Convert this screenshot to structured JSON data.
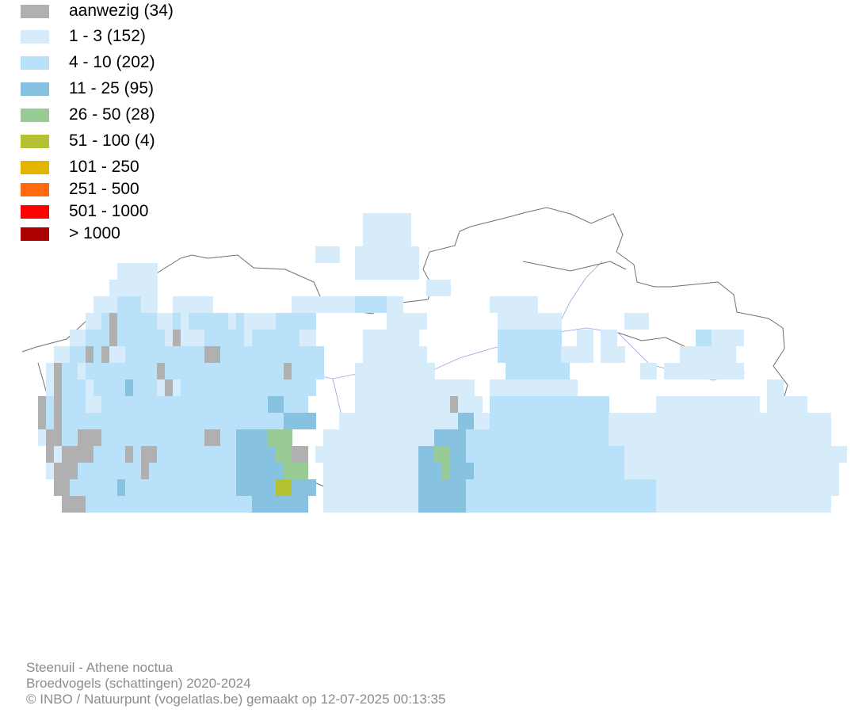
{
  "legend": [
    {
      "label": "aanwezig (34)",
      "color": "#b0b0b0"
    },
    {
      "label": "1 - 3 (152)",
      "color": "#d6ecfa"
    },
    {
      "label": "4 - 10 (202)",
      "color": "#b9e2fa"
    },
    {
      "label": "11 - 25 (95)",
      "color": "#88c2e1"
    },
    {
      "label": "26 - 50 (28)",
      "color": "#98cc94"
    },
    {
      "label": "51 - 100 (4)",
      "color": "#b4c231"
    },
    {
      "label": "101 - 250",
      "color": "#e3b400"
    },
    {
      "label": "251 - 500",
      "color": "#ff6a10"
    },
    {
      "label": "501 - 1000",
      "color": "#ff0000"
    },
    {
      "label": "> 1000",
      "color": "#aa0000"
    }
  ],
  "caption": {
    "species": "Steenuil - Athene noctua",
    "subtitle": "Broedvogels (schattingen) 2020-2024",
    "credit": "© INBO / Natuurpunt (vogelatlas.be) gemaakt op 12-07-2025 00:13:35"
  },
  "map": {
    "grid_cells_class_by_row": [
      "........................................................................................................",
      "...........................................11.11........................................................",
      "...........................................11.11........................................................",
      ".....................................11...1111111.......................................................",
      "............1111..........................11111.1.......................................................",
      "...........11111...................................11....................................................",
      ".........1112221...1111...........1111111.22221............1.1.1.........................................",
      "........112A222221121222221211112222..........1111..........1111111.........11...........................",
      "......11222A2222221A1112222212222221.......111111...........2222222...1..1...........2.111...............",
      "....1122A2A112222222222AA222222222222......111.111..........2222222.1.1..11........1.1.11...............",
      "...1A221222222222A222222222222222A222.....111111111..........2222222..........1..111.111.1...............",
      "...1A2221222232221A12222222222222222......1111111111.111...1111111111.........................1.........",
      "..A2A222112222222222222222222223322.......111111111111A11..22222222222222.......1.1.1.1111.1..11.1......",
      "..A2A2222222222222222222222222222333....1111111111111113311222222222222222111111111111111111111111111....",
      "..1AA22AAA2222222222222AA22333344.....111111111111113333222222222222222222111111111111111111111111111....",
      "...A1AAAA2222A2AA22222222223333344A..111111111111133443322222222222222222222111111111111111111111111111...",
      "...1AAA22222222A2222222222233333344...1111111111113334333222222222222222222211111111111111111111111111...",
      "....AA222222322222222222222333335533..1111111111113333332222222222222222222222221111111111111111111111....",
      ".....AAA222222222222222222222333333...111111111111333333222222222222222222222222111111111111111111111.....",
      "........................................................................................................"
    ]
  }
}
